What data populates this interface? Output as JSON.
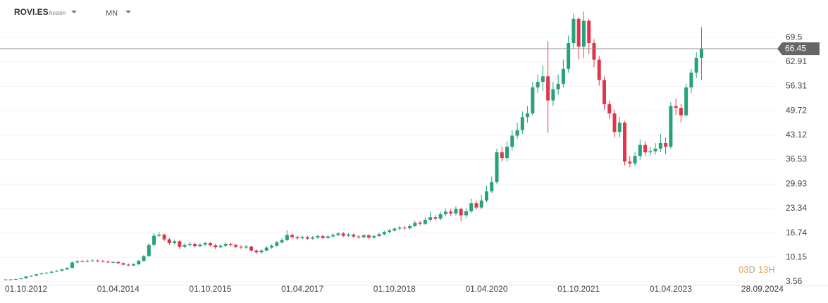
{
  "header": {
    "symbol": "ROVI.ES",
    "kind": "Acción",
    "timeframe": "MN"
  },
  "countdown": [
    "03",
    "D",
    "13",
    "H"
  ],
  "chart_data": {
    "type": "candlestick",
    "up_color": "#26a17b",
    "down_color": "#e03649",
    "last": 66.45,
    "grid": true,
    "ylim": [
      2.6,
      77.7
    ],
    "yticks": [
      3.56,
      10.15,
      16.74,
      23.34,
      29.93,
      36.53,
      43.12,
      49.72,
      56.31,
      62.91,
      69.5
    ],
    "xlim": [
      "2012-04-28",
      "2024-12-13"
    ],
    "xticks": [
      {
        "value": "2012-10-01",
        "label": "01.10.2012"
      },
      {
        "value": "2014-04-01",
        "label": "01.04.2014"
      },
      {
        "value": "2015-10-01",
        "label": "01.10.2015"
      },
      {
        "value": "2017-04-01",
        "label": "01.04.2017"
      },
      {
        "value": "2018-10-01",
        "label": "01.10.2018"
      },
      {
        "value": "2020-04-01",
        "label": "01.04.2020"
      },
      {
        "value": "2021-10-01",
        "label": "01.10.2021"
      },
      {
        "value": "2023-04-01",
        "label": "01.04.2023"
      },
      {
        "value": "2024-09-28",
        "label": "28.09.2024"
      }
    ],
    "x": [
      "2012-06",
      "2012-07",
      "2012-08",
      "2012-09",
      "2012-10",
      "2012-11",
      "2012-12",
      "2013-01",
      "2013-02",
      "2013-03",
      "2013-04",
      "2013-05",
      "2013-06",
      "2013-07",
      "2013-08",
      "2013-09",
      "2013-10",
      "2013-11",
      "2013-12",
      "2014-01",
      "2014-02",
      "2014-03",
      "2014-04",
      "2014-05",
      "2014-06",
      "2014-07",
      "2014-08",
      "2014-09",
      "2014-10",
      "2014-11",
      "2014-12",
      "2015-01",
      "2015-02",
      "2015-03",
      "2015-04",
      "2015-05",
      "2015-06",
      "2015-07",
      "2015-08",
      "2015-09",
      "2015-10",
      "2015-11",
      "2015-12",
      "2016-01",
      "2016-02",
      "2016-03",
      "2016-04",
      "2016-05",
      "2016-06",
      "2016-07",
      "2016-08",
      "2016-09",
      "2016-10",
      "2016-11",
      "2016-12",
      "2017-01",
      "2017-02",
      "2017-03",
      "2017-04",
      "2017-05",
      "2017-06",
      "2017-07",
      "2017-08",
      "2017-09",
      "2017-10",
      "2017-11",
      "2017-12",
      "2018-01",
      "2018-02",
      "2018-03",
      "2018-04",
      "2018-05",
      "2018-06",
      "2018-07",
      "2018-08",
      "2018-09",
      "2018-10",
      "2018-11",
      "2018-12",
      "2019-01",
      "2019-02",
      "2019-03",
      "2019-04",
      "2019-05",
      "2019-06",
      "2019-07",
      "2019-08",
      "2019-09",
      "2019-10",
      "2019-11",
      "2019-12",
      "2020-01",
      "2020-02",
      "2020-03",
      "2020-04",
      "2020-05",
      "2020-06",
      "2020-07",
      "2020-08",
      "2020-09",
      "2020-10",
      "2020-11",
      "2020-12",
      "2021-01",
      "2021-02",
      "2021-03",
      "2021-04",
      "2021-05",
      "2021-06",
      "2021-07",
      "2021-08",
      "2021-09",
      "2021-10",
      "2021-11",
      "2021-12",
      "2022-01",
      "2022-02",
      "2022-03",
      "2022-04",
      "2022-05",
      "2022-06",
      "2022-07",
      "2022-08",
      "2022-09",
      "2022-10",
      "2022-11",
      "2022-12",
      "2023-01",
      "2023-02",
      "2023-03",
      "2023-04",
      "2023-05",
      "2023-06",
      "2023-07",
      "2023-08",
      "2023-09",
      "2023-10"
    ],
    "open": [
      4.1,
      4.2,
      4.2,
      4.3,
      4.5,
      5.0,
      5.2,
      5.6,
      5.8,
      6.0,
      6.3,
      6.5,
      6.9,
      7.3,
      8.8,
      9.1,
      9.0,
      9.2,
      9.3,
      9.1,
      9.0,
      8.8,
      8.9,
      8.6,
      8.2,
      8.0,
      8.3,
      9.2,
      10.5,
      13.5,
      16.0,
      16.3,
      15.0,
      14.0,
      14.5,
      13.0,
      13.5,
      13.8,
      13.2,
      13.6,
      14.0,
      13.4,
      12.9,
      13.3,
      13.8,
      13.5,
      13.0,
      12.8,
      13.1,
      12.0,
      11.5,
      12.0,
      12.8,
      13.3,
      14.2,
      14.8,
      16.2,
      15.6,
      15.3,
      15.6,
      15.2,
      15.5,
      15.9,
      15.4,
      15.8,
      16.2,
      16.6,
      16.0,
      16.3,
      15.8,
      15.6,
      16.1,
      15.5,
      15.9,
      16.4,
      17.0,
      17.4,
      17.9,
      18.2,
      18.0,
      18.6,
      19.5,
      19.2,
      20.3,
      21.0,
      20.6,
      21.8,
      22.5,
      22.0,
      23.2,
      21.5,
      22.6,
      24.8,
      23.6,
      25.5,
      28.0,
      30.5,
      38.5,
      37.0,
      40.0,
      43.0,
      44.5,
      48.0,
      49.0,
      56.0,
      57.5,
      59.0,
      52.5,
      55.5,
      57.0,
      61.0,
      68.0,
      74.5,
      67.0,
      74.0,
      68.0,
      63.5,
      58.0,
      51.5,
      49.0,
      44.0,
      46.5,
      36.0,
      35.5,
      37.5,
      40.5,
      38.5,
      38.8,
      39.5,
      41.0,
      40.0,
      51.0,
      50.5,
      48.5,
      56.0,
      60.0,
      64.0
    ],
    "high": [
      4.3,
      4.3,
      4.4,
      4.6,
      5.1,
      5.3,
      5.7,
      6.0,
      6.2,
      6.5,
      6.7,
      7.1,
      7.5,
      9.0,
      9.4,
      9.4,
      9.5,
      9.6,
      9.6,
      9.4,
      9.3,
      9.2,
      9.2,
      8.8,
      8.5,
      8.6,
      9.5,
      10.8,
      14.0,
      16.8,
      17.0,
      16.6,
      15.4,
      15.0,
      14.8,
      13.9,
      14.3,
      14.2,
      14.0,
      14.4,
      14.3,
      13.8,
      13.7,
      14.2,
      14.1,
      13.8,
      13.4,
      13.5,
      13.3,
      12.3,
      12.4,
      13.2,
      13.7,
      14.6,
      15.3,
      17.5,
      16.6,
      16.0,
      16.0,
      16.0,
      15.9,
      16.3,
      16.3,
      16.2,
      16.6,
      17.0,
      17.0,
      16.7,
      16.6,
      16.1,
      16.5,
      16.4,
      16.3,
      16.8,
      17.4,
      17.8,
      18.3,
      18.7,
      18.6,
      19.1,
      20.0,
      20.0,
      21.0,
      22.5,
      21.6,
      22.5,
      23.3,
      23.2,
      24.0,
      23.6,
      23.4,
      26.0,
      25.5,
      27.0,
      29.5,
      32.0,
      39.5,
      40.0,
      41.5,
      44.5,
      46.5,
      49.5,
      51.0,
      57.5,
      59.5,
      62.0,
      68.5,
      57.5,
      59.5,
      63.5,
      70.0,
      76.0,
      75.0,
      76.5,
      74.5,
      69.0,
      64.5,
      59.0,
      52.5,
      50.0,
      48.0,
      47.0,
      37.5,
      38.5,
      42.0,
      41.5,
      40.0,
      41.0,
      43.5,
      42.5,
      52.0,
      53.0,
      51.5,
      57.0,
      61.0,
      65.5,
      72.3
    ],
    "low": [
      4.0,
      4.1,
      4.1,
      4.2,
      4.4,
      4.9,
      5.1,
      5.5,
      5.7,
      5.9,
      6.2,
      6.4,
      6.8,
      7.2,
      8.6,
      8.8,
      8.8,
      9.0,
      8.9,
      8.8,
      8.6,
      8.6,
      8.4,
      8.0,
      7.7,
      7.8,
      8.1,
      9.0,
      10.3,
      13.2,
      15.6,
      14.6,
      13.5,
      13.6,
      12.4,
      12.6,
      13.1,
      12.8,
      12.9,
      13.3,
      13.0,
      12.4,
      12.6,
      13.0,
      13.1,
      12.6,
      12.4,
      12.5,
      11.7,
      11.1,
      11.2,
      11.8,
      12.5,
      13.1,
      13.9,
      14.6,
      15.2,
      14.9,
      15.0,
      14.8,
      14.9,
      15.2,
      15.0,
      15.1,
      15.5,
      15.9,
      15.6,
      15.7,
      15.4,
      15.2,
      15.3,
      15.1,
      15.2,
      15.6,
      16.1,
      16.7,
      17.1,
      17.5,
      17.6,
      17.7,
      18.3,
      18.7,
      18.9,
      19.8,
      20.1,
      20.2,
      21.3,
      21.4,
      21.5,
      19.8,
      20.8,
      22.2,
      23.0,
      23.2,
      25.0,
      27.5,
      30.0,
      36.0,
      36.0,
      39.0,
      42.0,
      43.5,
      46.5,
      48.5,
      54.5,
      55.0,
      43.8,
      51.0,
      54.0,
      56.0,
      60.0,
      66.5,
      63.5,
      64.0,
      65.0,
      61.5,
      56.5,
      50.0,
      47.5,
      42.5,
      42.5,
      35.0,
      34.5,
      34.8,
      36.5,
      37.5,
      37.5,
      38.0,
      38.5,
      38.0,
      39.5,
      48.5,
      46.5,
      48.0,
      54.5,
      58.5,
      58.0
    ],
    "close": [
      4.2,
      4.2,
      4.3,
      4.5,
      5.0,
      5.2,
      5.6,
      5.8,
      6.0,
      6.3,
      6.5,
      6.9,
      7.3,
      8.8,
      9.1,
      9.0,
      9.2,
      9.3,
      9.1,
      9.0,
      8.8,
      8.9,
      8.6,
      8.2,
      8.0,
      8.3,
      9.2,
      10.5,
      13.5,
      16.0,
      16.3,
      15.0,
      14.0,
      14.5,
      13.0,
      13.5,
      13.8,
      13.2,
      13.6,
      14.0,
      13.4,
      12.9,
      13.3,
      13.8,
      13.5,
      13.0,
      12.8,
      13.1,
      12.0,
      11.5,
      12.0,
      12.8,
      13.3,
      14.2,
      14.8,
      16.2,
      15.6,
      15.3,
      15.6,
      15.2,
      15.5,
      15.9,
      15.4,
      15.8,
      16.2,
      16.6,
      16.0,
      16.3,
      15.8,
      15.6,
      16.1,
      15.5,
      15.9,
      16.4,
      17.0,
      17.4,
      17.9,
      18.2,
      18.0,
      18.6,
      19.5,
      19.2,
      20.3,
      21.0,
      20.6,
      21.8,
      22.5,
      22.0,
      23.2,
      21.5,
      22.6,
      24.8,
      23.6,
      25.5,
      28.0,
      30.5,
      38.5,
      37.0,
      40.0,
      43.0,
      44.5,
      48.0,
      49.0,
      56.0,
      57.5,
      59.0,
      52.5,
      55.5,
      57.0,
      61.0,
      68.0,
      74.5,
      67.0,
      74.0,
      68.0,
      63.5,
      58.0,
      51.5,
      49.0,
      44.0,
      46.5,
      36.0,
      35.5,
      37.5,
      40.5,
      38.5,
      38.8,
      39.5,
      41.0,
      40.0,
      51.0,
      50.5,
      48.5,
      56.0,
      60.0,
      64.0,
      66.45
    ]
  }
}
